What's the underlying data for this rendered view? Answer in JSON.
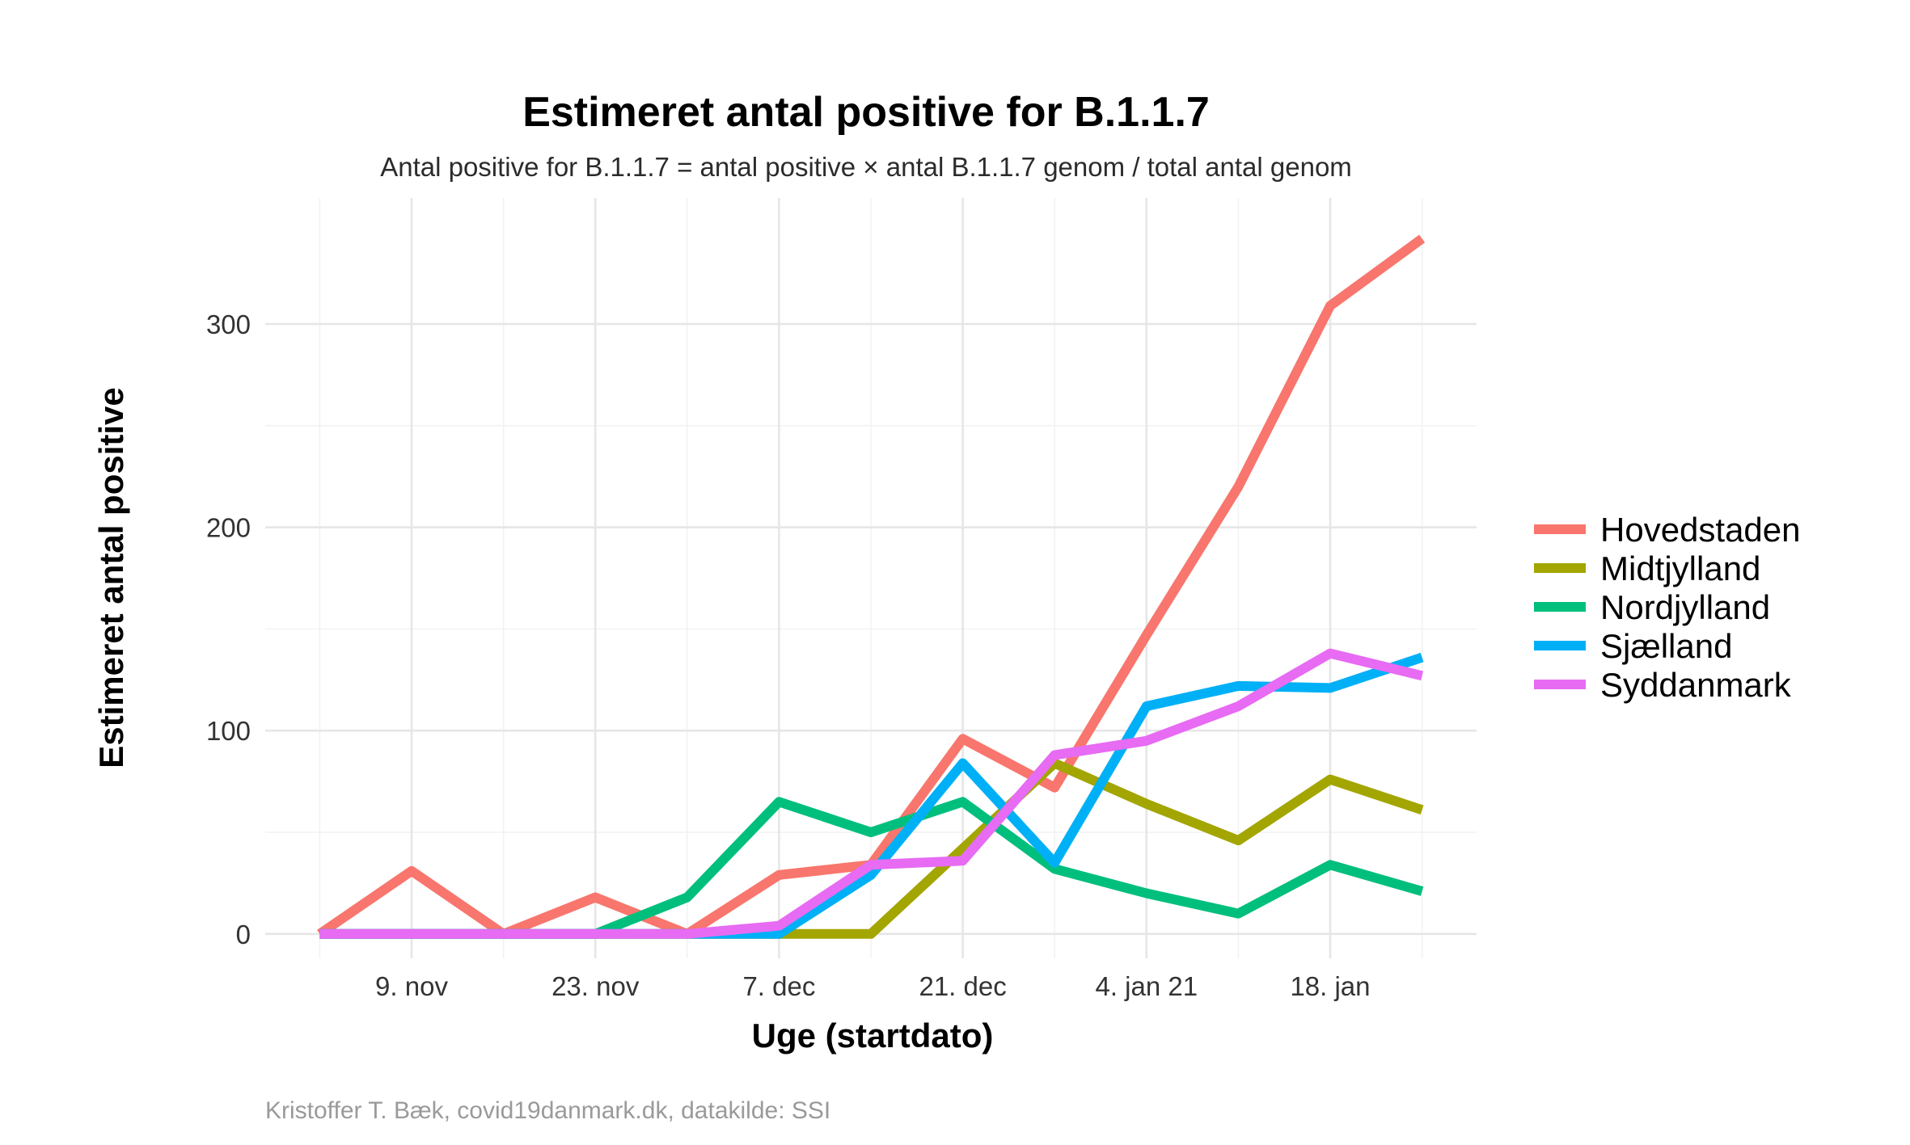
{
  "chart_data": {
    "type": "line",
    "title": "Estimeret antal positive for B.1.1.7",
    "subtitle": "Antal positive for B.1.1.7 = antal positive × antal B.1.1.7 genom / total antal genom",
    "xlabel": "Uge (startdato)",
    "ylabel": "Estimeret antal positive",
    "caption": "Kristoffer T. Bæk, covid19danmark.dk, datakilde: SSI",
    "x": [
      "2020-11-02",
      "2020-11-09",
      "2020-11-16",
      "2020-11-23",
      "2020-11-30",
      "2020-12-07",
      "2020-12-14",
      "2020-12-21",
      "2020-12-28",
      "2021-01-04",
      "2021-01-11",
      "2021-01-18",
      "2021-01-25"
    ],
    "x_ticks": [
      {
        "x": "2020-11-09",
        "label": "9. nov"
      },
      {
        "x": "2020-11-23",
        "label": "23. nov"
      },
      {
        "x": "2020-12-07",
        "label": "7. dec"
      },
      {
        "x": "2020-12-21",
        "label": "21. dec"
      },
      {
        "x": "2021-01-04",
        "label": "4. jan 21"
      },
      {
        "x": "2021-01-18",
        "label": "18. jan"
      }
    ],
    "y_ticks": [
      0,
      100,
      200,
      300
    ],
    "ylim": [
      -12,
      362
    ],
    "grid": true,
    "legend_position": "right",
    "series": [
      {
        "name": "Hovedstaden",
        "color": "#F8766D",
        "values": [
          0,
          31,
          0,
          18,
          0,
          29,
          34,
          96,
          72,
          147,
          220,
          309,
          342
        ]
      },
      {
        "name": "Midtjylland",
        "color": "#A3A500",
        "values": [
          0,
          0,
          0,
          0,
          0,
          0,
          0,
          42,
          84,
          64,
          46,
          76,
          61
        ]
      },
      {
        "name": "Nordjylland",
        "color": "#00BF7D",
        "values": [
          0,
          0,
          0,
          0,
          18,
          65,
          50,
          65,
          32,
          20,
          10,
          34,
          21
        ]
      },
      {
        "name": "Sjælland",
        "color": "#00B0F6",
        "values": [
          0,
          0,
          0,
          0,
          0,
          0,
          29,
          84,
          35,
          112,
          122,
          121,
          136
        ]
      },
      {
        "name": "Syddanmark",
        "color": "#E76BF3",
        "values": [
          0,
          0,
          0,
          0,
          0,
          4,
          34,
          36,
          88,
          95,
          112,
          138,
          127
        ]
      }
    ]
  }
}
